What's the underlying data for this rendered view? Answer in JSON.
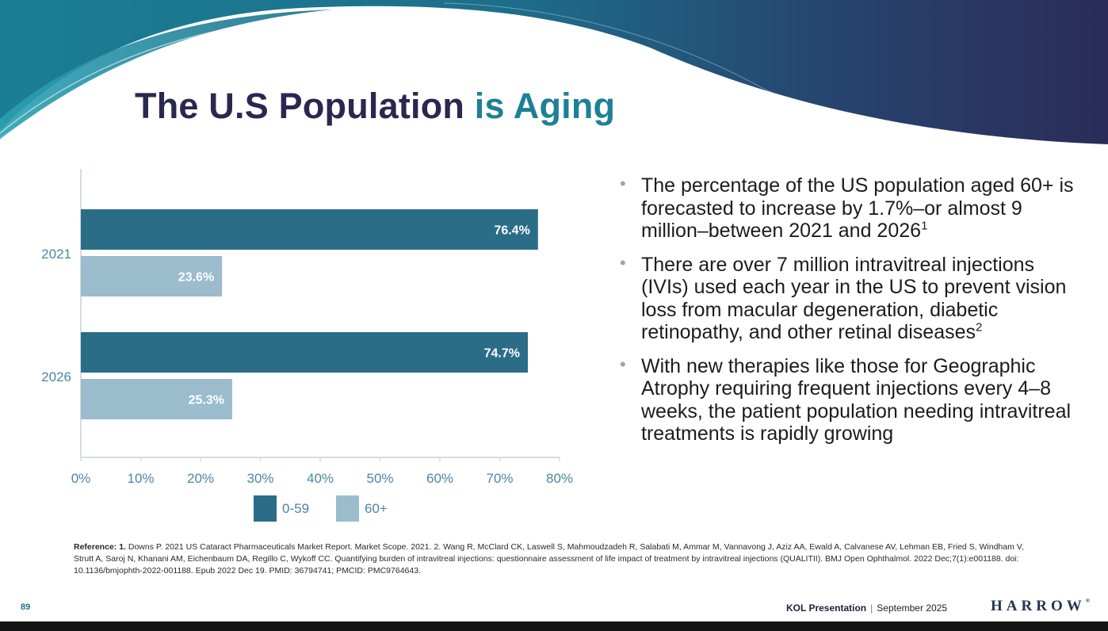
{
  "title": {
    "part1": "The U.S Population",
    "part2": "is Aging"
  },
  "colors": {
    "navy": "#2a2750",
    "teal": "#1e8096",
    "dark_bar": "#2b6d86",
    "light_bar": "#9bbccc"
  },
  "chart_data": {
    "type": "bar",
    "orientation": "horizontal",
    "categories": [
      "2021",
      "2026"
    ],
    "series": [
      {
        "name": "0-59",
        "values": [
          76.4,
          74.7
        ],
        "labels": [
          "76.4%",
          "74.7%"
        ],
        "color": "#2b6d86"
      },
      {
        "name": "60+",
        "values": [
          23.6,
          25.3
        ],
        "labels": [
          "23.6%",
          "25.3%"
        ],
        "color": "#9bbccc"
      }
    ],
    "xlim": [
      0,
      80
    ],
    "xticks": [
      "0%",
      "10%",
      "20%",
      "30%",
      "40%",
      "50%",
      "60%",
      "70%",
      "80%"
    ],
    "grid": false,
    "legend": "bottom"
  },
  "bullets": [
    {
      "text": "The percentage of the US population aged 60+ is forecasted to increase by 1.7%–or almost 9 million–between 2021 and 2026",
      "sup": "1"
    },
    {
      "text": "There are over 7 million intravitreal injections (IVIs) used each year in the US to prevent vision loss from macular degeneration, diabetic retinopathy, and other retinal diseases",
      "sup": "2"
    },
    {
      "text": "With new therapies like those for Geographic Atrophy requiring frequent injections every 4–8 weeks, the patient population needing intravitreal treatments is rapidly growing",
      "sup": ""
    }
  ],
  "reference": {
    "label": "Reference: 1.",
    "text": " Downs P. 2021 US Cataract Pharmaceuticals Market Report. Market Scope. 2021. 2. Wang R, McClard CK, Laswell S, Mahmoudzadeh R, Salabati M, Ammar M, Vannavong J, Aziz AA, Ewald A, Calvanese AV, Lehman EB, Fried S, Windham V, Strutt A, Saroj N, Khanani AM, Eichenbaum DA, Regillo C, Wykoff CC. Quantifying burden of intravitreal injections: questionnaire assessment of life impact of treatment by intravitreal injections (QUALITII). BMJ Open Ophthalmol. 2022 Dec;7(1):e001188. doi: 10.1136/bmjophth-2022-001188. Epub 2022 Dec 19. PMID: 36794741; PMCID: PMC9764643."
  },
  "footer": {
    "page_number": "89",
    "presentation": "KOL Presentation",
    "separator": "|",
    "date": "September 2025",
    "logo": "HARROW",
    "logo_mark": "®"
  }
}
